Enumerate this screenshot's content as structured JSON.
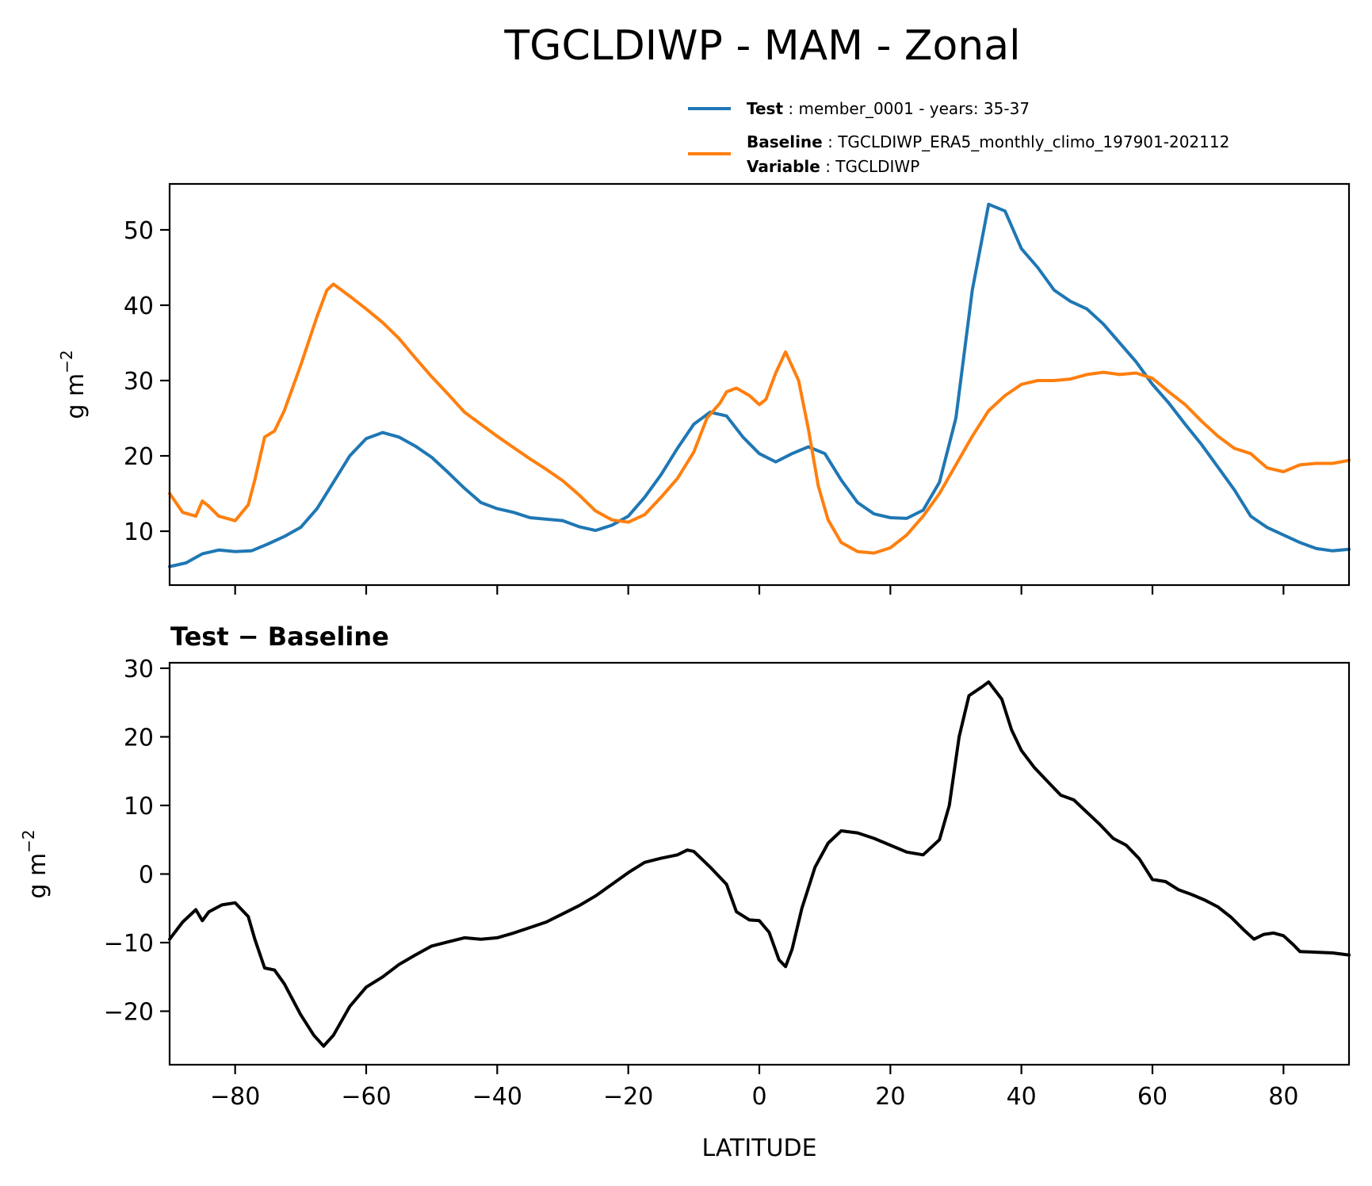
{
  "chart_data": [
    {
      "type": "line",
      "title": "TGCLDIWP - MAM - Zonal",
      "subtitle": "",
      "xlabel": "",
      "ylabel": "g m",
      "ylabel_superscript": "−2",
      "xlim": [
        -90,
        90
      ],
      "ylim": [
        2.85,
        56.1
      ],
      "x_ticks": [
        -80,
        -60,
        -40,
        -20,
        0,
        20,
        40,
        60,
        80
      ],
      "x_tick_labels": [
        "",
        "",
        "",
        "",
        "",
        "",
        "",
        "",
        ""
      ],
      "y_ticks": [
        10,
        20,
        30,
        40,
        50
      ],
      "y_tick_labels": [
        "10",
        "20",
        "30",
        "40",
        "50"
      ],
      "grid": false,
      "legend_position": "above-top-right",
      "legend": [
        {
          "key": "Test",
          "text": "member_0001 - years: 35-37"
        },
        {
          "key": "Baseline",
          "text": "TGCLDIWP_ERA5_monthly_climo_197901-202112",
          "key2": "Variable",
          "text2": "TGCLDIWP"
        }
      ],
      "series": [
        {
          "name": "Test",
          "color": "#1f77b4",
          "x": [
            -90,
            -87.5,
            -85,
            -82.5,
            -80,
            -77.5,
            -75,
            -72.5,
            -70,
            -67.5,
            -65,
            -62.5,
            -60,
            -57.5,
            -55,
            -52.5,
            -50,
            -47.5,
            -45,
            -42.5,
            -40,
            -37.5,
            -35,
            -32.5,
            -30,
            -27.5,
            -25,
            -22.5,
            -20,
            -17.5,
            -15,
            -12.5,
            -10,
            -7.5,
            -5,
            -2.5,
            0,
            2.5,
            5,
            7.5,
            10,
            12.5,
            15,
            17.5,
            20,
            22.5,
            25,
            27.5,
            30,
            32.5,
            35,
            37.5,
            40,
            42.5,
            45,
            47.5,
            50,
            52.5,
            55,
            57.5,
            60,
            62.5,
            65,
            67.5,
            70,
            72.5,
            75,
            77.5,
            80,
            82.5,
            85,
            87.5,
            90
          ],
          "y": [
            5.3,
            5.8,
            7.0,
            7.5,
            7.3,
            7.4,
            8.3,
            9.3,
            10.5,
            13.0,
            16.5,
            20.0,
            22.3,
            23.1,
            22.5,
            21.3,
            19.8,
            17.8,
            15.7,
            13.8,
            13.0,
            12.5,
            11.8,
            11.6,
            11.4,
            10.6,
            10.1,
            10.8,
            12.0,
            14.5,
            17.5,
            21.0,
            24.2,
            25.8,
            25.3,
            22.5,
            20.3,
            19.2,
            20.3,
            21.2,
            20.3,
            16.8,
            13.8,
            12.3,
            11.8,
            11.7,
            12.8,
            16.5,
            25.0,
            42.0,
            53.4,
            52.5,
            47.5,
            45.0,
            42.0,
            40.5,
            39.5,
            37.5,
            35.0,
            32.5,
            29.5,
            27.0,
            24.2,
            21.5,
            18.5,
            15.5,
            12.0,
            10.5,
            9.5,
            8.5,
            7.7,
            7.4,
            7.6
          ]
        },
        {
          "name": "Baseline",
          "color": "#ff7f0e",
          "x": [
            -90,
            -88,
            -86,
            -85,
            -84,
            -82.5,
            -80,
            -78,
            -77,
            -75.5,
            -74,
            -72.5,
            -70,
            -67.5,
            -66,
            -65,
            -62.5,
            -60,
            -57.5,
            -55,
            -52.5,
            -50,
            -47.5,
            -45,
            -42.5,
            -40,
            -37.5,
            -35,
            -32.5,
            -30,
            -27.5,
            -25,
            -22.5,
            -20,
            -17.5,
            -15,
            -12.5,
            -10,
            -8,
            -6,
            -5,
            -3.5,
            -1.5,
            0,
            1,
            2.5,
            4,
            6,
            7.5,
            9,
            10.5,
            12.5,
            15,
            17.5,
            20,
            22.5,
            25,
            27.5,
            30,
            32.5,
            35,
            37.5,
            40,
            42.5,
            45,
            47.5,
            50,
            52.5,
            55,
            57.5,
            60,
            62.5,
            65,
            67.5,
            70,
            72.5,
            75,
            77.5,
            80,
            82.5,
            85,
            87.5,
            90
          ],
          "y": [
            15.0,
            12.5,
            12.0,
            14.0,
            13.3,
            12.0,
            11.4,
            13.5,
            16.8,
            22.5,
            23.3,
            26.0,
            32.0,
            38.5,
            42.0,
            42.8,
            41.2,
            39.5,
            37.7,
            35.6,
            33.0,
            30.5,
            28.2,
            25.8,
            24.2,
            22.6,
            21.1,
            19.6,
            18.2,
            16.7,
            14.8,
            12.7,
            11.5,
            11.2,
            12.2,
            14.5,
            17.0,
            20.5,
            25.0,
            27.0,
            28.5,
            29.0,
            28.0,
            26.8,
            27.5,
            31.0,
            33.8,
            30.0,
            23.5,
            16.0,
            11.5,
            8.5,
            7.3,
            7.1,
            7.8,
            9.5,
            12.0,
            15.0,
            18.8,
            22.6,
            26.0,
            28.0,
            29.5,
            30.0,
            30.0,
            30.2,
            30.8,
            31.1,
            30.8,
            31.0,
            30.3,
            28.5,
            26.8,
            24.6,
            22.6,
            21.0,
            20.3,
            18.4,
            17.9,
            18.8,
            19.0,
            19.0,
            19.4
          ]
        }
      ]
    },
    {
      "type": "line",
      "title": "Test − Baseline",
      "xlabel": "LATITUDE",
      "ylabel": "g m",
      "ylabel_superscript": "−2",
      "xlim": [
        -90,
        90
      ],
      "ylim": [
        -27.8,
        30.8
      ],
      "x_ticks": [
        -80,
        -60,
        -40,
        -20,
        0,
        20,
        40,
        60,
        80
      ],
      "x_tick_labels": [
        "−80",
        "−60",
        "−40",
        "−20",
        "0",
        "20",
        "40",
        "60",
        "80"
      ],
      "y_ticks": [
        -20,
        -10,
        0,
        10,
        20,
        30
      ],
      "y_tick_labels": [
        "−20",
        "−10",
        "0",
        "10",
        "20",
        "30"
      ],
      "grid": false,
      "series": [
        {
          "name": "Test − Baseline",
          "color": "#000000",
          "x": [
            -90,
            -88,
            -86,
            -85,
            -84,
            -82,
            -80,
            -78,
            -77,
            -75.5,
            -74,
            -72.5,
            -70,
            -68,
            -66.5,
            -65,
            -62.5,
            -60,
            -57.5,
            -55,
            -52.5,
            -50,
            -47.5,
            -45,
            -42.5,
            -40,
            -37.5,
            -35,
            -32.5,
            -30,
            -27.5,
            -25,
            -22.5,
            -20,
            -17.5,
            -15,
            -12.5,
            -11,
            -10,
            -7.5,
            -5,
            -3.5,
            -1.5,
            0,
            1.5,
            3,
            4,
            5,
            6.5,
            8.5,
            10.5,
            12.5,
            15,
            17.5,
            20,
            22.5,
            25,
            27.5,
            29,
            30.5,
            32,
            34,
            35,
            37,
            38.5,
            40,
            42,
            44,
            46,
            48,
            50,
            52,
            54,
            56,
            58,
            60,
            62,
            64,
            66,
            68,
            70,
            72,
            74,
            75.5,
            77,
            78.5,
            80,
            81.5,
            82.5,
            85,
            87.5,
            90
          ],
          "y": [
            -9.5,
            -7.0,
            -5.2,
            -6.8,
            -5.5,
            -4.5,
            -4.2,
            -6.2,
            -9.5,
            -13.7,
            -14.0,
            -16.0,
            -20.5,
            -23.5,
            -25.1,
            -23.5,
            -19.3,
            -16.5,
            -15.0,
            -13.2,
            -11.8,
            -10.5,
            -9.9,
            -9.3,
            -9.5,
            -9.3,
            -8.6,
            -7.8,
            -7.0,
            -5.8,
            -4.6,
            -3.2,
            -1.5,
            0.2,
            1.7,
            2.3,
            2.8,
            3.5,
            3.3,
            1.0,
            -1.5,
            -5.5,
            -6.7,
            -6.8,
            -8.5,
            -12.5,
            -13.5,
            -11.0,
            -5.0,
            1.0,
            4.5,
            6.3,
            6.0,
            5.2,
            4.2,
            3.2,
            2.8,
            5.0,
            10.0,
            20.0,
            26.0,
            27.3,
            28.0,
            25.5,
            21.0,
            18.0,
            15.5,
            13.5,
            11.5,
            10.8,
            9.0,
            7.2,
            5.2,
            4.2,
            2.2,
            -0.8,
            -1.1,
            -2.3,
            -3.0,
            -3.8,
            -4.8,
            -6.3,
            -8.2,
            -9.5,
            -8.8,
            -8.6,
            -9.0,
            -10.3,
            -11.3,
            -11.4,
            -11.5,
            -11.8
          ]
        }
      ]
    }
  ]
}
